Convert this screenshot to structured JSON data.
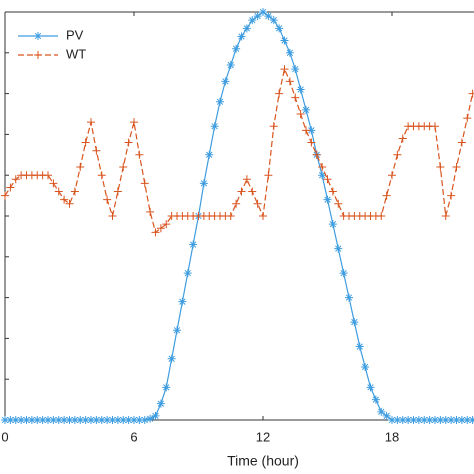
{
  "chart_data": {
    "type": "line",
    "xlabel": "Time (hour)",
    "x": [
      0,
      0.25,
      0.5,
      0.75,
      1,
      1.25,
      1.5,
      1.75,
      2,
      2.25,
      2.5,
      2.75,
      3,
      3.25,
      3.5,
      3.75,
      4,
      4.25,
      4.5,
      4.75,
      5,
      5.25,
      5.5,
      5.75,
      6,
      6.25,
      6.5,
      6.75,
      7,
      7.25,
      7.5,
      7.75,
      8,
      8.25,
      8.5,
      8.75,
      9,
      9.25,
      9.5,
      9.75,
      10,
      10.25,
      10.5,
      10.75,
      11,
      11.25,
      11.5,
      11.75,
      12,
      12.25,
      12.5,
      12.75,
      13,
      13.25,
      13.5,
      13.75,
      14,
      14.25,
      14.5,
      14.75,
      15,
      15.25,
      15.5,
      15.75,
      16,
      16.25,
      16.5,
      16.75,
      17,
      17.25,
      17.5,
      17.75,
      18,
      18.25,
      18.5,
      18.75,
      19,
      19.25,
      19.5,
      19.75,
      20,
      20.25,
      20.5,
      20.75,
      21,
      21.25,
      21.5,
      21.75
    ],
    "series": [
      {
        "name": "PV",
        "color": "#3d9de0",
        "marker": "asterisk",
        "dash": "solid",
        "values": [
          0,
          0,
          0,
          0,
          0,
          0,
          0,
          0,
          0,
          0,
          0,
          0,
          0,
          0,
          0,
          0,
          0,
          0,
          0,
          0,
          0,
          0,
          0,
          0,
          0,
          0,
          0,
          0.003,
          0.01,
          0.04,
          0.08,
          0.15,
          0.22,
          0.29,
          0.36,
          0.43,
          0.5,
          0.58,
          0.65,
          0.72,
          0.78,
          0.83,
          0.87,
          0.91,
          0.94,
          0.96,
          0.98,
          0.99,
          1.0,
          0.99,
          0.98,
          0.96,
          0.93,
          0.9,
          0.86,
          0.81,
          0.76,
          0.71,
          0.65,
          0.6,
          0.54,
          0.48,
          0.42,
          0.36,
          0.3,
          0.24,
          0.18,
          0.13,
          0.08,
          0.05,
          0.02,
          0.01,
          0,
          0,
          0,
          0,
          0,
          0,
          0,
          0,
          0,
          0,
          0,
          0,
          0,
          0,
          0,
          0
        ]
      },
      {
        "name": "WT",
        "color": "#d9541e",
        "marker": "plus",
        "dash": "dashed",
        "values": [
          0.55,
          0.57,
          0.59,
          0.6,
          0.6,
          0.6,
          0.6,
          0.6,
          0.6,
          0.58,
          0.56,
          0.54,
          0.53,
          0.56,
          0.62,
          0.68,
          0.73,
          0.66,
          0.6,
          0.54,
          0.5,
          0.56,
          0.62,
          0.68,
          0.73,
          0.65,
          0.58,
          0.51,
          0.46,
          0.47,
          0.48,
          0.5,
          0.5,
          0.5,
          0.5,
          0.5,
          0.5,
          0.5,
          0.5,
          0.5,
          0.5,
          0.5,
          0.5,
          0.53,
          0.56,
          0.59,
          0.56,
          0.53,
          0.5,
          0.6,
          0.72,
          0.8,
          0.86,
          0.83,
          0.79,
          0.75,
          0.71,
          0.68,
          0.65,
          0.62,
          0.59,
          0.56,
          0.53,
          0.5,
          0.5,
          0.5,
          0.5,
          0.5,
          0.5,
          0.5,
          0.5,
          0.55,
          0.6,
          0.65,
          0.69,
          0.72,
          0.72,
          0.72,
          0.72,
          0.72,
          0.72,
          0.62,
          0.5,
          0.55,
          0.62,
          0.68,
          0.74,
          0.8
        ]
      }
    ],
    "xlim": [
      0,
      21.8
    ],
    "xticks": [
      0,
      6,
      12,
      18
    ],
    "ylim": [
      0,
      1
    ],
    "yticks": [
      0,
      0.1,
      0.2,
      0.3,
      0.4,
      0.5,
      0.6,
      0.7,
      0.8,
      0.9,
      1
    ],
    "legend": "upper left"
  }
}
